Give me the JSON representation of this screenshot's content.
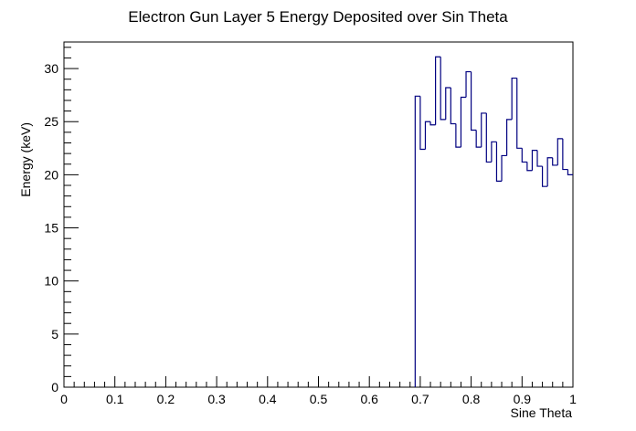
{
  "chart_data": {
    "type": "line",
    "title": "Electron Gun Layer 5 Energy Deposited over Sin Theta",
    "xlabel": "Sine Theta",
    "ylabel": "Energy (keV)",
    "xlim": [
      0,
      1
    ],
    "ylim": [
      0,
      32.5
    ],
    "x_ticks": [
      "0",
      "0.1",
      "0.2",
      "0.3",
      "0.4",
      "0.5",
      "0.6",
      "0.7",
      "0.8",
      "0.9",
      "1"
    ],
    "y_ticks": [
      "0",
      "5",
      "10",
      "15",
      "20",
      "25",
      "30"
    ],
    "grid": false,
    "line_color": "#000080",
    "bin_width": 0.01,
    "series": [
      {
        "x": [
          0.69,
          0.7,
          0.71,
          0.72,
          0.73,
          0.74,
          0.75,
          0.76,
          0.77,
          0.78,
          0.79,
          0.8,
          0.81,
          0.82,
          0.83,
          0.84,
          0.85,
          0.86,
          0.87,
          0.88,
          0.89,
          0.9,
          0.91,
          0.92,
          0.93,
          0.94,
          0.95,
          0.96,
          0.97,
          0.98,
          0.99
        ],
        "values": [
          27.4,
          22.4,
          25.0,
          24.7,
          31.1,
          25.2,
          28.2,
          24.8,
          22.6,
          27.3,
          29.7,
          24.2,
          22.6,
          25.8,
          21.2,
          23.1,
          19.4,
          21.8,
          25.2,
          29.1,
          22.5,
          21.2,
          20.4,
          22.3,
          20.8,
          18.9,
          21.6,
          20.9,
          23.4,
          20.5,
          20.0
        ]
      }
    ]
  }
}
